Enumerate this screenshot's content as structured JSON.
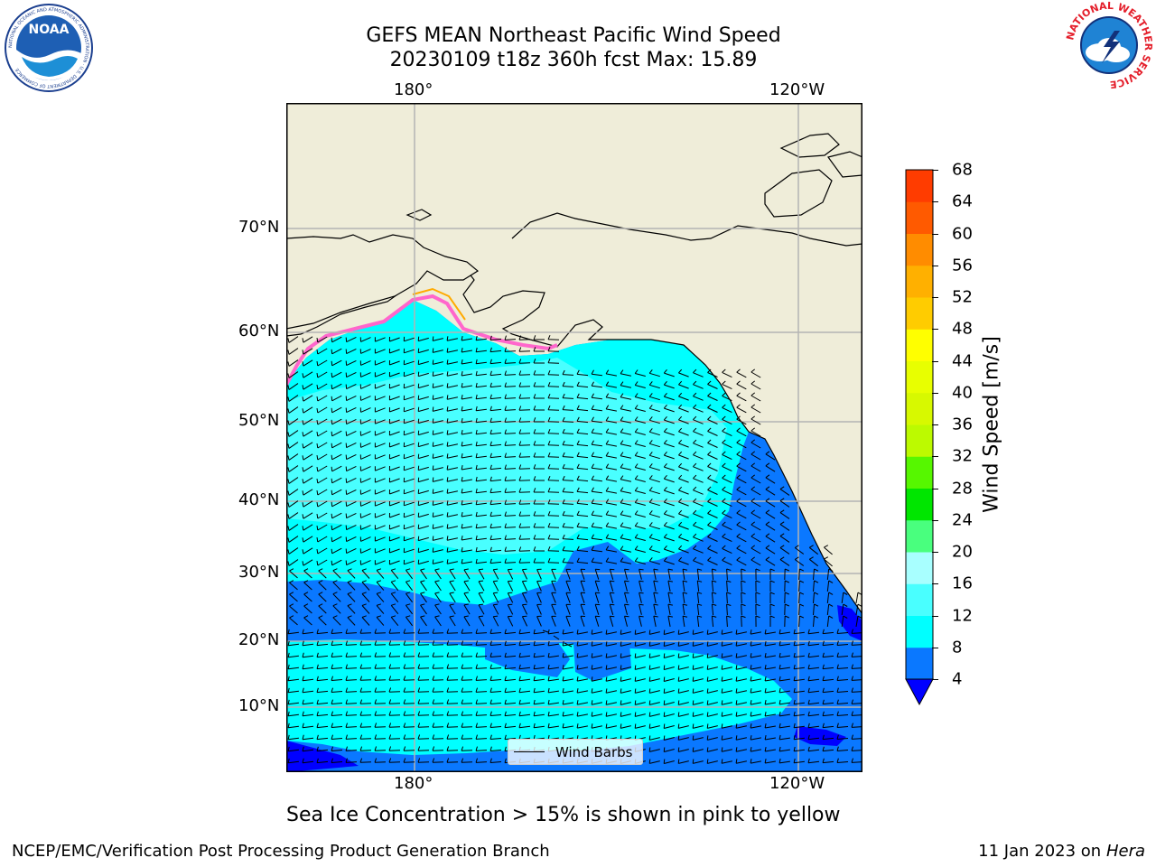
{
  "title_line1": "GEFS MEAN Northeast Pacific Wind Speed",
  "title_line2": "20230109 t18z 360h fcst   Max: 15.89",
  "lon_labels": [
    "180°",
    "120°W"
  ],
  "lat_labels": [
    "70°N",
    "60°N",
    "50°N",
    "40°N",
    "30°N",
    "20°N",
    "10°N"
  ],
  "colorbar": {
    "label": "Wind Speed [m/s]",
    "ticks": [
      "4",
      "8",
      "12",
      "16",
      "20",
      "24",
      "28",
      "32",
      "36",
      "40",
      "44",
      "48",
      "52",
      "56",
      "60",
      "64",
      "68"
    ],
    "colors": [
      "#0a78ff",
      "#00ffff",
      "#49ffff",
      "#a8ffff",
      "#49ff7e",
      "#00e600",
      "#56f700",
      "#bcfa00",
      "#d7f900",
      "#e8ff00",
      "#ffff00",
      "#ffcc00",
      "#ffb000",
      "#ff8c00",
      "#ff5a00",
      "#ff3c00",
      "#ff0000"
    ],
    "under_color": "#0000ff"
  },
  "legend_label": "Wind Barbs",
  "caption": "Sea Ice Concentration > 15% is shown in pink to yellow",
  "footer_left": "NCEP/EMC/Verification Post Processing Product Generation Branch",
  "footer_right_date": "11 Jan 2023 on ",
  "footer_right_host": "Hera",
  "logo_left_text": "NOAA",
  "logo_left_ring": "NATIONAL OCEANIC AND ATMOSPHERIC ADMINISTRATION · U.S. DEPARTMENT OF COMMERCE",
  "logo_right_ring": "NATIONAL WEATHER SERVICE",
  "colors": {
    "land": "#efedd9",
    "ocean_calm": "#0a78ff",
    "ocean_deep": "#0000ff",
    "ocean_mid": "#00ffff",
    "ocean_high": "#49ffff",
    "grid": "#b4b4b4"
  }
}
